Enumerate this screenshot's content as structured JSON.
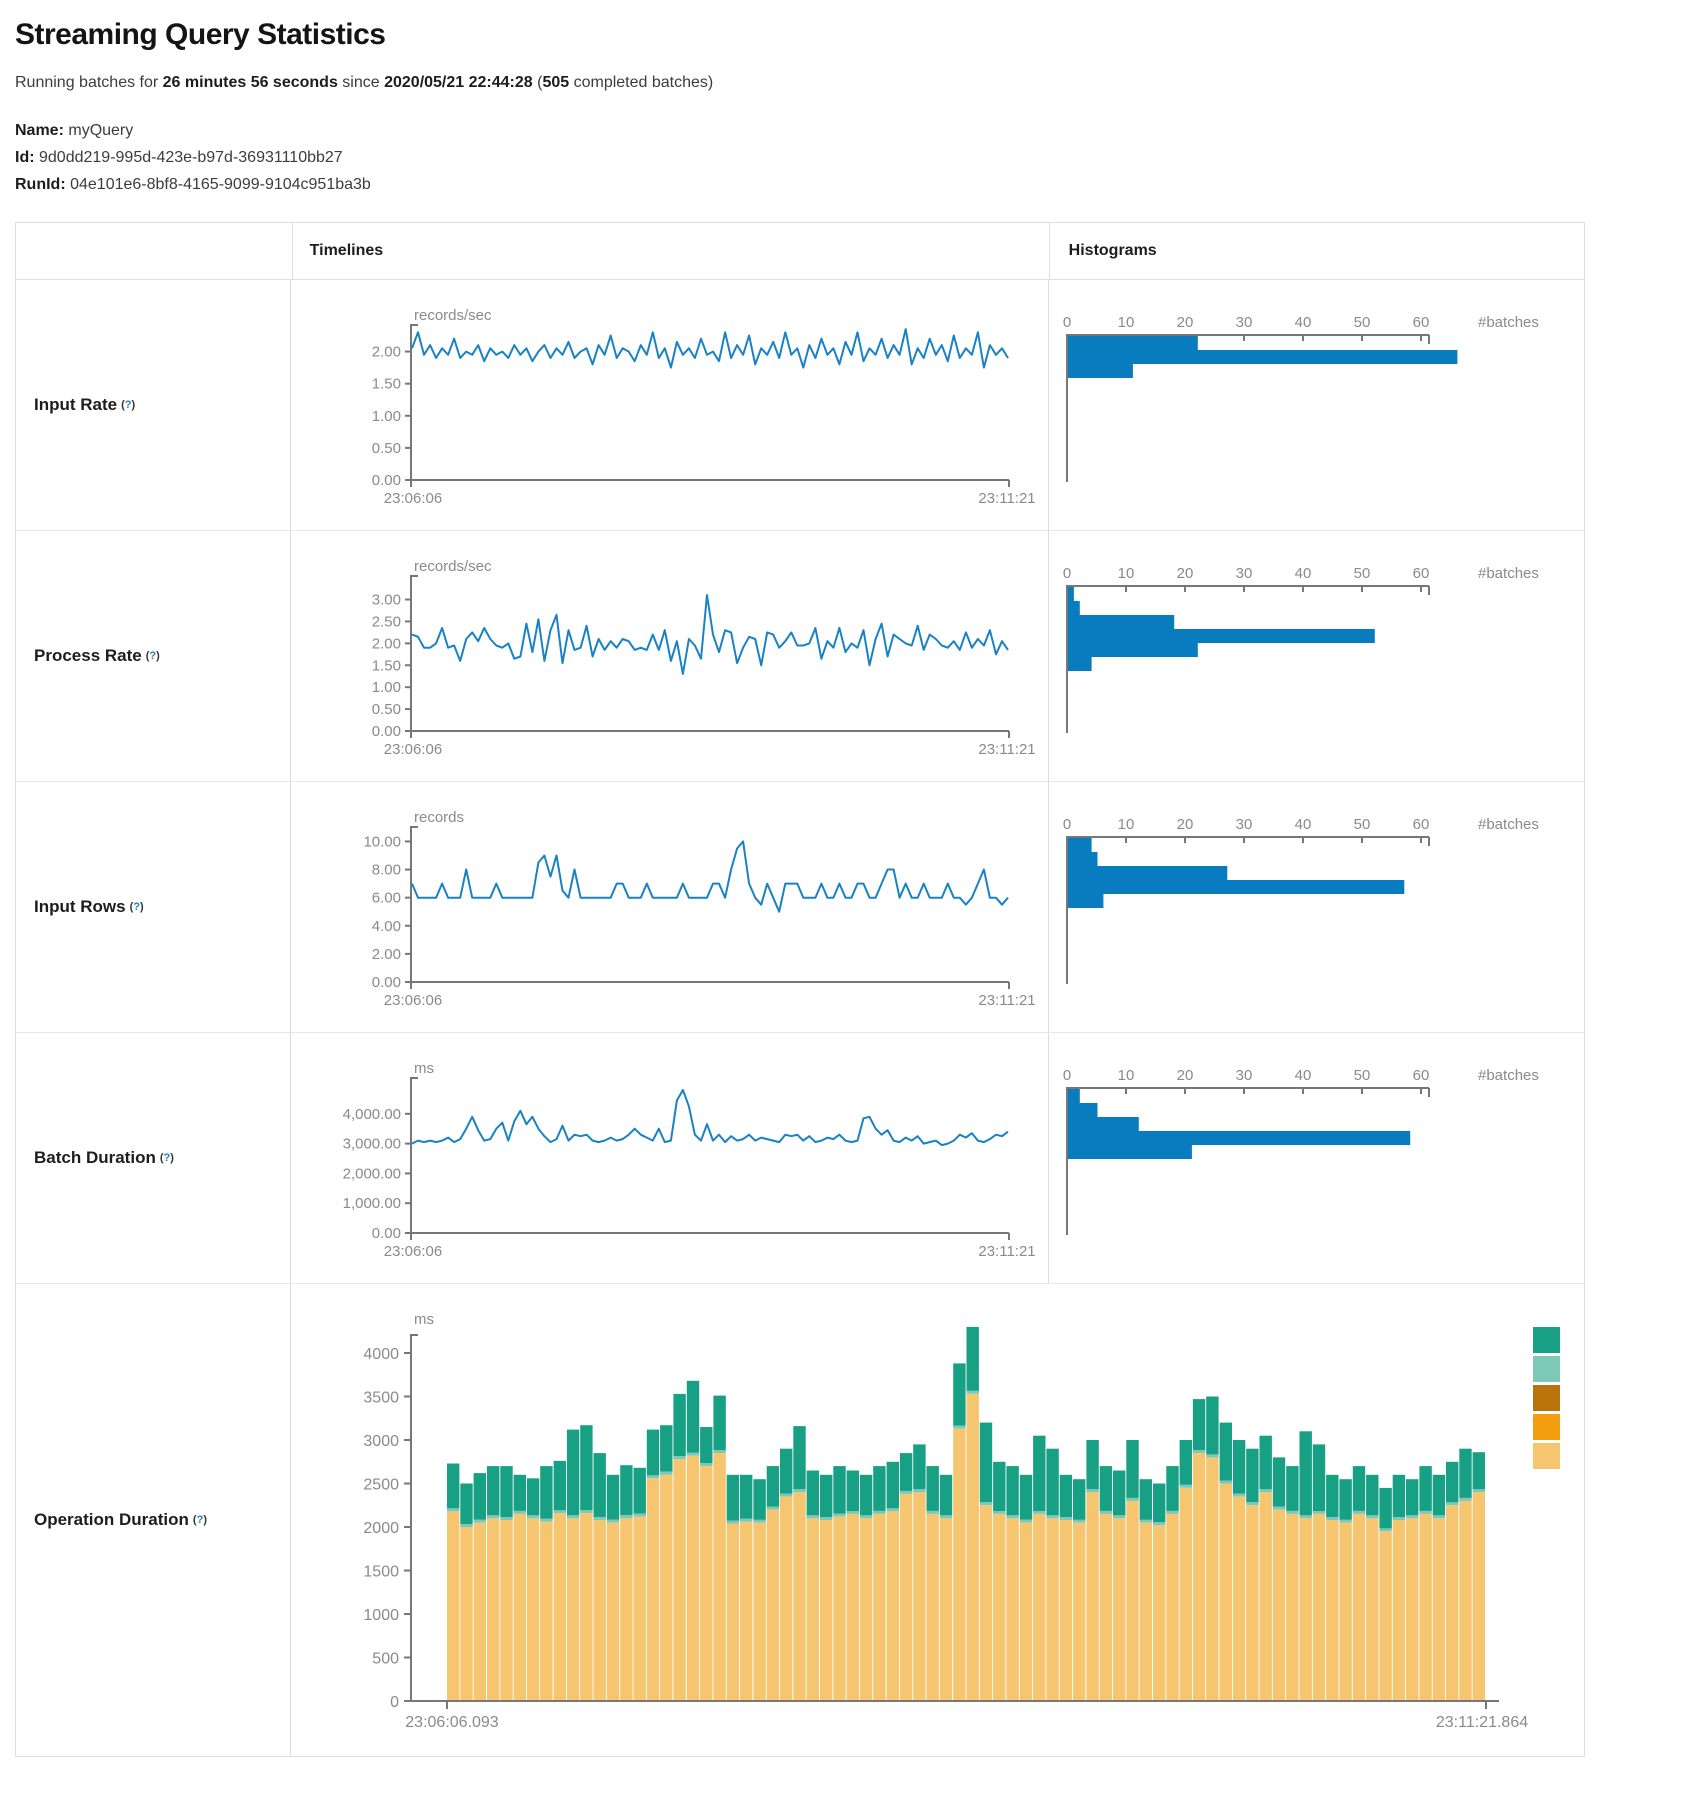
{
  "page": {
    "title": "Streaming Query Statistics",
    "running_prefix": "Running batches for ",
    "duration": "26 minutes 56 seconds",
    "since": " since ",
    "start_time": "2020/05/21 22:44:28",
    "paren": " (",
    "completed_batches": "505",
    "completed_suffix": " completed batches)",
    "name_label": "Name:",
    "name_value": "myQuery",
    "id_label": "Id:",
    "id_value": "9d0dd219-995d-423e-b97d-36931110bb27",
    "runid_label": "RunId:",
    "runid_value": "04e101e6-8bf8-4165-9099-9104c951ba3b",
    "help_open": "(",
    "help_q": "?",
    "help_close": ")"
  },
  "table": {
    "timelines_header": "Timelines",
    "histograms_header": "Histograms"
  },
  "chart_data": {
    "colors": {
      "line": "#1982c4",
      "bar": "#087cbe",
      "axis": "#777777",
      "tick_text": "#8a8a8a",
      "stack_green": "#18a085",
      "stack_teal": "#7ec8b7",
      "stack_ochre": "#b8730a",
      "stack_orange": "#f39d10",
      "stack_tan": "#f6c570"
    },
    "hist_ticks": [
      0,
      10,
      20,
      30,
      40,
      50,
      60
    ],
    "hist_axis_label": "#batches",
    "rows": [
      {
        "label": "Input Rate",
        "type": "line",
        "unit": "records/sec",
        "x_start": "23:06:06",
        "x_end": "23:11:21",
        "ytick_labels": [
          "2.00",
          "1.50",
          "1.00",
          "0.50",
          "0.00"
        ],
        "ytick_values": [
          2,
          1.5,
          1,
          0.5,
          0
        ],
        "ytop_value": 2.32,
        "timeline": [
          2.05,
          2.3,
          1.95,
          2.1,
          1.9,
          2.05,
          1.95,
          2.2,
          1.9,
          2.0,
          1.95,
          2.1,
          1.85,
          2.05,
          1.95,
          2.0,
          1.9,
          2.1,
          1.95,
          2.05,
          1.85,
          2.0,
          2.1,
          1.9,
          2.05,
          1.95,
          2.15,
          1.9,
          2.0,
          2.05,
          1.8,
          2.1,
          1.95,
          2.25,
          1.9,
          2.05,
          2.0,
          1.85,
          2.1,
          1.95,
          2.3,
          1.9,
          2.05,
          1.75,
          2.15,
          1.95,
          2.05,
          1.9,
          2.2,
          1.95,
          2.0,
          1.85,
          2.3,
          1.9,
          2.1,
          1.95,
          2.25,
          1.8,
          2.05,
          1.95,
          2.15,
          1.9,
          2.3,
          1.95,
          2.05,
          1.75,
          2.1,
          1.9,
          2.2,
          1.95,
          2.05,
          1.8,
          2.15,
          1.95,
          2.3,
          1.85,
          2.05,
          1.95,
          2.2,
          1.9,
          2.1,
          1.95,
          2.35,
          1.8,
          2.05,
          1.9,
          2.2,
          1.95,
          2.1,
          1.85,
          2.25,
          1.9,
          2.05,
          1.95,
          2.3,
          1.75,
          2.1,
          1.95,
          2.05,
          1.9
        ],
        "histogram": [
          22,
          66,
          11
        ]
      },
      {
        "label": "Process Rate",
        "type": "line",
        "unit": "records/sec",
        "x_start": "23:06:06",
        "x_end": "23:11:21",
        "ytick_labels": [
          "3.00",
          "2.50",
          "2.00",
          "1.50",
          "1.00",
          "0.50",
          "0.00"
        ],
        "ytick_values": [
          3,
          2.5,
          2,
          1.5,
          1,
          0.5,
          0
        ],
        "ytop_value": 3.4,
        "timeline": [
          2.2,
          2.15,
          1.9,
          1.9,
          2.0,
          2.35,
          1.9,
          1.95,
          1.6,
          2.1,
          2.25,
          2.05,
          2.35,
          2.1,
          1.95,
          1.9,
          2.0,
          1.65,
          1.7,
          2.45,
          1.8,
          2.55,
          1.6,
          2.3,
          2.65,
          1.55,
          2.3,
          1.85,
          1.9,
          2.4,
          1.7,
          2.1,
          1.85,
          2.05,
          1.9,
          2.1,
          2.05,
          1.85,
          1.9,
          1.85,
          2.2,
          1.85,
          2.3,
          1.6,
          2.05,
          1.3,
          2.1,
          1.95,
          1.65,
          3.1,
          2.2,
          1.8,
          2.3,
          2.25,
          1.55,
          1.9,
          2.15,
          2.1,
          1.5,
          2.25,
          2.2,
          1.9,
          2.05,
          2.25,
          1.95,
          1.95,
          2.0,
          2.35,
          1.65,
          2.05,
          1.9,
          2.35,
          1.8,
          2.0,
          1.9,
          2.3,
          1.5,
          2.1,
          2.45,
          1.7,
          2.2,
          2.1,
          2.0,
          1.95,
          2.4,
          1.85,
          2.2,
          2.1,
          1.95,
          1.9,
          2.05,
          1.85,
          2.25,
          1.9,
          2.1,
          1.95,
          2.3,
          1.75,
          2.05,
          1.85
        ],
        "histogram": [
          1,
          2,
          18,
          52,
          22,
          4
        ]
      },
      {
        "label": "Input Rows",
        "type": "line",
        "unit": "records",
        "x_start": "23:06:06",
        "x_end": "23:11:21",
        "ytick_labels": [
          "10.00",
          "8.00",
          "6.00",
          "4.00",
          "2.00",
          "0.00"
        ],
        "ytick_values": [
          10,
          8,
          6,
          4,
          2,
          0
        ],
        "ytop_value": 10.6,
        "timeline": [
          7,
          6,
          6,
          6,
          6,
          7,
          6,
          6,
          6,
          8,
          6,
          6,
          6,
          6,
          7,
          6,
          6,
          6,
          6,
          6,
          6,
          8.5,
          9,
          7.5,
          9,
          6.5,
          6,
          8,
          6,
          6,
          6,
          6,
          6,
          6,
          7,
          7,
          6,
          6,
          6,
          7,
          6,
          6,
          6,
          6,
          6,
          7,
          6,
          6,
          6,
          6,
          7,
          7,
          6,
          8,
          9.5,
          10,
          7,
          6,
          5.5,
          7,
          6,
          5,
          7,
          7,
          7,
          6,
          6,
          6,
          7,
          6,
          6,
          7,
          6,
          6,
          7,
          7,
          6,
          6,
          7,
          8,
          8,
          6,
          7,
          6,
          6,
          7,
          6,
          6,
          6,
          7,
          6,
          6,
          5.5,
          6,
          7,
          8,
          6,
          6,
          5.5,
          6
        ],
        "histogram": [
          4,
          5,
          27,
          57,
          6
        ]
      },
      {
        "label": "Batch Duration",
        "type": "line",
        "unit": "ms",
        "x_start": "23:06:06",
        "x_end": "23:11:21",
        "ytick_labels": [
          "4,000.00",
          "3,000.00",
          "2,000.00",
          "1,000.00",
          "0.00"
        ],
        "ytick_values": [
          4000,
          3000,
          2000,
          1000,
          0
        ],
        "ytop_value": 5000,
        "timeline": [
          3000,
          3100,
          3050,
          3100,
          3050,
          3100,
          3200,
          3050,
          3150,
          3500,
          3900,
          3450,
          3100,
          3150,
          3500,
          3700,
          3100,
          3750,
          4100,
          3650,
          3900,
          3500,
          3250,
          3050,
          3150,
          3600,
          3100,
          3300,
          3250,
          3300,
          3100,
          3050,
          3100,
          3200,
          3100,
          3150,
          3300,
          3500,
          3300,
          3200,
          3100,
          3500,
          3050,
          3100,
          4450,
          4800,
          4250,
          3300,
          3100,
          3650,
          3100,
          3300,
          3050,
          3250,
          3100,
          3150,
          3300,
          3100,
          3200,
          3150,
          3100,
          3050,
          3300,
          3250,
          3300,
          3100,
          3250,
          3050,
          3100,
          3200,
          3150,
          3300,
          3100,
          3050,
          3100,
          3850,
          3900,
          3500,
          3300,
          3450,
          3100,
          3050,
          3200,
          3100,
          3250,
          3000,
          3050,
          3100,
          2950,
          3000,
          3100,
          3300,
          3200,
          3350,
          3100,
          3050,
          3150,
          3300,
          3250,
          3400
        ],
        "histogram": [
          2,
          5,
          12,
          58,
          21
        ]
      }
    ],
    "operation": {
      "label": "Operation Duration",
      "type": "stacked-bar",
      "unit": "ms",
      "x_start": "23:06:06.093",
      "x_end": "23:11:21.864",
      "ytick_labels": [
        "4000",
        "3500",
        "3000",
        "2500",
        "2000",
        "1500",
        "1000",
        "500",
        "0"
      ],
      "ytick_values": [
        4000,
        3500,
        3000,
        2500,
        2000,
        1500,
        1000,
        500,
        0
      ],
      "legend_colors": [
        "#18a085",
        "#7ec8b7",
        "#b8730a",
        "#f39d10",
        "#f6c570"
      ],
      "bars": [
        [
          2180,
          35,
          515
        ],
        [
          2000,
          35,
          465
        ],
        [
          2050,
          35,
          535
        ],
        [
          2100,
          35,
          565
        ],
        [
          2080,
          35,
          585
        ],
        [
          2150,
          35,
          415
        ],
        [
          2100,
          35,
          425
        ],
        [
          2060,
          35,
          605
        ],
        [
          2160,
          35,
          565
        ],
        [
          2100,
          35,
          985
        ],
        [
          2160,
          35,
          975
        ],
        [
          2080,
          35,
          735
        ],
        [
          2050,
          35,
          515
        ],
        [
          2100,
          35,
          575
        ],
        [
          2120,
          35,
          525
        ],
        [
          2560,
          35,
          525
        ],
        [
          2600,
          35,
          535
        ],
        [
          2780,
          35,
          715
        ],
        [
          2820,
          35,
          825
        ],
        [
          2700,
          35,
          415
        ],
        [
          2850,
          35,
          625
        ],
        [
          2040,
          35,
          525
        ],
        [
          2060,
          35,
          505
        ],
        [
          2050,
          35,
          465
        ],
        [
          2200,
          35,
          465
        ],
        [
          2350,
          35,
          515
        ],
        [
          2400,
          35,
          725
        ],
        [
          2100,
          35,
          515
        ],
        [
          2080,
          35,
          485
        ],
        [
          2120,
          35,
          545
        ],
        [
          2150,
          35,
          465
        ],
        [
          2100,
          35,
          465
        ],
        [
          2150,
          35,
          515
        ],
        [
          2180,
          35,
          535
        ],
        [
          2380,
          35,
          435
        ],
        [
          2400,
          35,
          515
        ],
        [
          2150,
          35,
          515
        ],
        [
          2100,
          35,
          465
        ],
        [
          3130,
          35,
          715
        ],
        [
          3530,
          35,
          735
        ],
        [
          2250,
          35,
          915
        ],
        [
          2150,
          35,
          565
        ],
        [
          2100,
          35,
          565
        ],
        [
          2050,
          35,
          515
        ],
        [
          2150,
          35,
          865
        ],
        [
          2100,
          35,
          765
        ],
        [
          2080,
          35,
          485
        ],
        [
          2050,
          35,
          465
        ],
        [
          2400,
          35,
          565
        ],
        [
          2150,
          35,
          515
        ],
        [
          2100,
          35,
          515
        ],
        [
          2300,
          35,
          665
        ],
        [
          2050,
          35,
          465
        ],
        [
          2020,
          35,
          445
        ],
        [
          2150,
          35,
          515
        ],
        [
          2450,
          35,
          515
        ],
        [
          2850,
          35,
          585
        ],
        [
          2800,
          35,
          665
        ],
        [
          2500,
          35,
          665
        ],
        [
          2350,
          35,
          615
        ],
        [
          2250,
          35,
          615
        ],
        [
          2400,
          35,
          615
        ],
        [
          2200,
          35,
          565
        ],
        [
          2150,
          35,
          515
        ],
        [
          2100,
          35,
          965
        ],
        [
          2150,
          35,
          765
        ],
        [
          2080,
          35,
          485
        ],
        [
          2050,
          35,
          465
        ],
        [
          2150,
          35,
          515
        ],
        [
          2100,
          35,
          465
        ],
        [
          1950,
          35,
          465
        ],
        [
          2080,
          35,
          485
        ],
        [
          2100,
          35,
          415
        ],
        [
          2150,
          35,
          515
        ],
        [
          2100,
          35,
          465
        ],
        [
          2250,
          35,
          465
        ],
        [
          2300,
          35,
          565
        ],
        [
          2400,
          35,
          425
        ]
      ]
    }
  }
}
